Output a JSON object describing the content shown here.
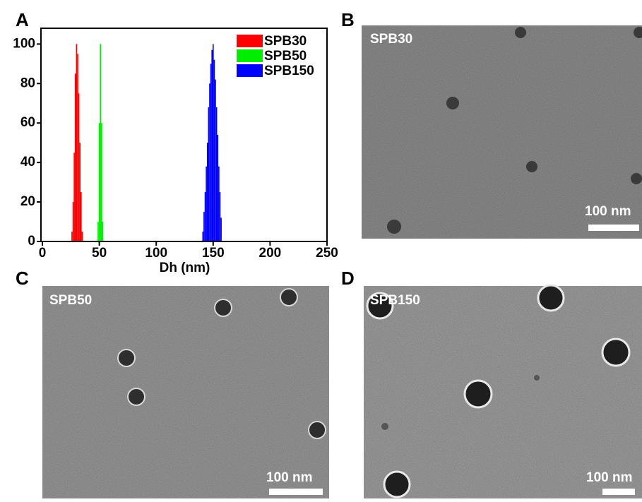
{
  "panel_labels": [
    "A",
    "B",
    "C",
    "D"
  ],
  "chart_data": {
    "type": "bar",
    "x_label": "Dh (nm)",
    "xlim": [
      0,
      250
    ],
    "xticks": [
      0,
      50,
      100,
      150,
      200,
      250
    ],
    "ylim": [
      0,
      108
    ],
    "yticks": [
      0,
      20,
      40,
      60,
      80,
      100
    ],
    "legend": "top-right",
    "series": [
      {
        "name": "SPB30",
        "color": "#ff0000",
        "x": [
          26,
          27,
          28,
          29,
          30,
          31,
          32,
          33,
          34,
          35
        ],
        "values": [
          5,
          20,
          45,
          85,
          100,
          95,
          75,
          50,
          25,
          5
        ]
      },
      {
        "name": "SPB50",
        "color": "#00ee00",
        "x": [
          49,
          50,
          51,
          52,
          53
        ],
        "values": [
          10,
          60,
          100,
          60,
          10
        ]
      },
      {
        "name": "SPB150",
        "color": "#0000ff",
        "x": [
          141,
          142,
          143,
          144,
          145,
          146,
          147,
          148,
          149,
          150,
          151,
          152,
          153,
          154,
          155,
          156,
          157
        ],
        "values": [
          5,
          15,
          25,
          38,
          50,
          68,
          80,
          90,
          97,
          100,
          92,
          82,
          68,
          54,
          38,
          25,
          12
        ]
      }
    ]
  },
  "images": [
    {
      "label": "SPB30",
      "scale_bar": "100 nm"
    },
    {
      "label": "SPB50",
      "scale_bar": "100 nm"
    },
    {
      "label": "SPB150",
      "scale_bar": "100 nm"
    }
  ]
}
